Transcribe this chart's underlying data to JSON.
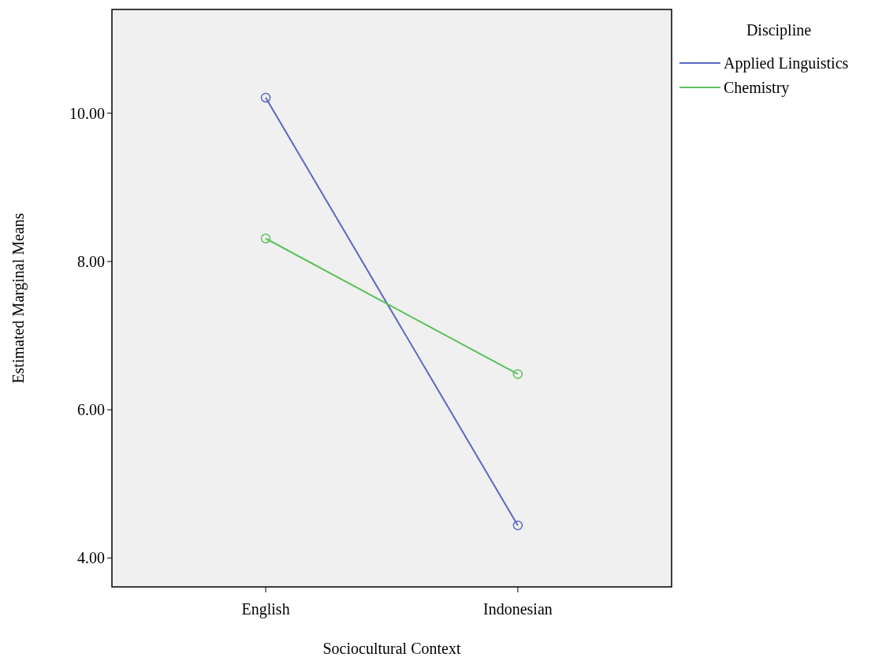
{
  "chart_data": {
    "type": "line",
    "xlabel": "Sociocultural Context",
    "ylabel": "Estimated Marginal Means",
    "legend_title": "Discipline",
    "categories": [
      "English",
      "Indonesian"
    ],
    "series": [
      {
        "name": "Applied Linguistics",
        "color": "#5a67c4",
        "values": [
          10.21,
          4.44
        ]
      },
      {
        "name": "Chemistry",
        "color": "#5cc15c",
        "values": [
          8.31,
          6.48
        ]
      }
    ],
    "ylim": [
      3.61,
      11.4
    ],
    "yticks": [
      {
        "value": 4,
        "label": "4.00"
      },
      {
        "value": 6,
        "label": "6.00"
      },
      {
        "value": 8,
        "label": "8.00"
      },
      {
        "value": 10,
        "label": "10.00"
      }
    ],
    "grid": false,
    "legend": "top right",
    "marker": "circle",
    "line_style": "solid"
  }
}
